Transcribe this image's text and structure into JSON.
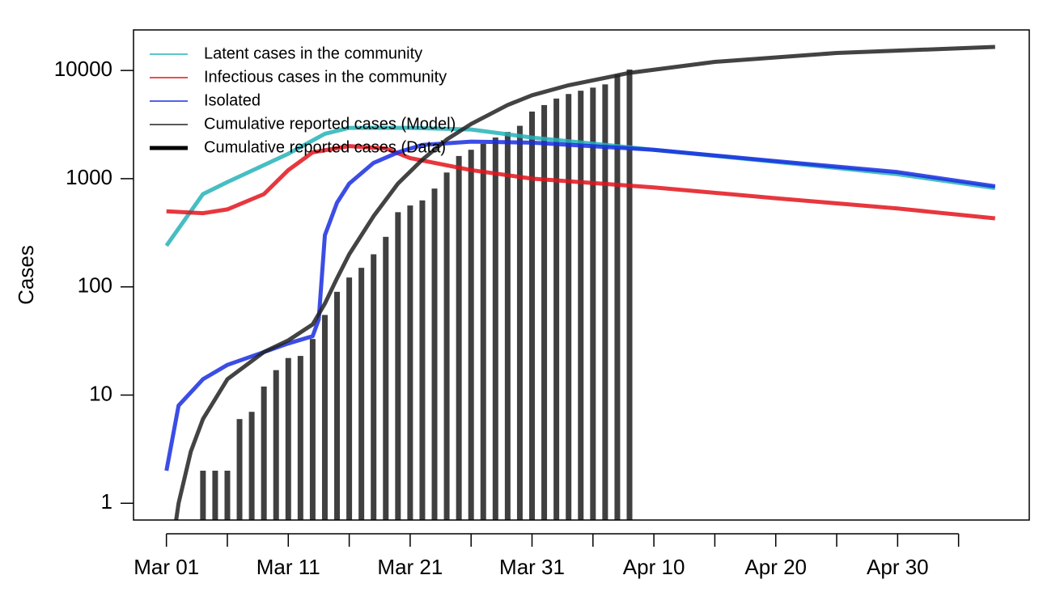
{
  "chart_data": {
    "type": "line",
    "y_label": "Cases",
    "log_y": true,
    "xlim": [
      -2.7,
      70.8
    ],
    "ylim": [
      0.7,
      23700
    ],
    "yticks": [
      1,
      10,
      100,
      1000,
      10000
    ],
    "xticks": [
      {
        "value": 0,
        "label": "Mar 01"
      },
      {
        "value": 10,
        "label": "Mar 11"
      },
      {
        "value": 20,
        "label": "Mar 21"
      },
      {
        "value": 30,
        "label": "Mar 31"
      },
      {
        "value": 40,
        "label": "Apr 10"
      },
      {
        "value": 50,
        "label": "Apr 20"
      },
      {
        "value": 60,
        "label": "Apr 30"
      }
    ],
    "xminor_ticks": [
      5,
      15,
      25,
      35,
      45,
      55,
      65
    ],
    "legend": "top-left",
    "series": [
      {
        "name": "Latent cases in the community",
        "color": "#26b3b8",
        "style": "line",
        "linewidth": 5,
        "x": [
          0,
          3,
          5,
          10,
          13,
          15,
          20,
          25,
          30,
          40,
          50,
          60,
          68
        ],
        "values": [
          240,
          720,
          930,
          1700,
          2600,
          2950,
          2950,
          2850,
          2400,
          1850,
          1430,
          1100,
          820
        ]
      },
      {
        "name": "Infectious cases in the community",
        "color": "#e3141c",
        "style": "line",
        "linewidth": 5,
        "x": [
          0,
          3,
          5,
          8,
          10,
          12,
          15,
          18,
          20,
          25,
          30,
          40,
          50,
          60,
          68
        ],
        "values": [
          500,
          480,
          520,
          720,
          1200,
          1750,
          2000,
          1900,
          1550,
          1200,
          1000,
          830,
          660,
          530,
          430
        ]
      },
      {
        "name": "Isolated",
        "color": "#1a2ee0",
        "style": "line",
        "linewidth": 5,
        "x": [
          0,
          1,
          3,
          5,
          8,
          10,
          12,
          12.5,
          13,
          14,
          15,
          17,
          19,
          21,
          25,
          30,
          40,
          50,
          60,
          68
        ],
        "values": [
          2,
          8,
          14,
          19,
          25,
          30,
          35,
          50,
          300,
          600,
          900,
          1400,
          1750,
          2050,
          2200,
          2150,
          1850,
          1450,
          1150,
          850
        ]
      },
      {
        "name": "Cumulative reported cases (Model)",
        "color": "#222222",
        "style": "line",
        "linewidth": 5,
        "x": [
          0.8,
          1,
          2,
          3,
          5,
          8,
          10,
          12,
          13,
          14,
          15,
          17,
          19,
          21,
          23,
          25,
          28,
          30,
          33,
          38,
          45,
          55,
          68
        ],
        "values": [
          0.7,
          1,
          3,
          6,
          14,
          25,
          32,
          45,
          70,
          120,
          200,
          450,
          900,
          1500,
          2300,
          3200,
          4800,
          5900,
          7300,
          9500,
          12000,
          14500,
          16500
        ]
      },
      {
        "name": "Cumulative reported cases (Data)",
        "color": "#404040",
        "style": "bar",
        "linewidth": 5,
        "x": [
          3,
          4,
          5,
          6,
          7,
          8,
          9,
          10,
          11,
          12,
          13,
          14,
          15,
          16,
          17,
          18,
          19,
          20,
          21,
          22,
          23,
          24,
          25,
          26,
          27,
          28,
          29,
          30,
          31,
          32,
          33,
          34,
          35,
          36,
          37,
          38
        ],
        "values": [
          2,
          2,
          2,
          6,
          7,
          12,
          17,
          22,
          23,
          33,
          55,
          90,
          122,
          150,
          200,
          290,
          490,
          565,
          630,
          810,
          1140,
          1620,
          1850,
          2100,
          2400,
          2700,
          3080,
          4170,
          4790,
          5500,
          6060,
          6500,
          6940,
          7440,
          9170,
          10200
        ]
      }
    ]
  }
}
